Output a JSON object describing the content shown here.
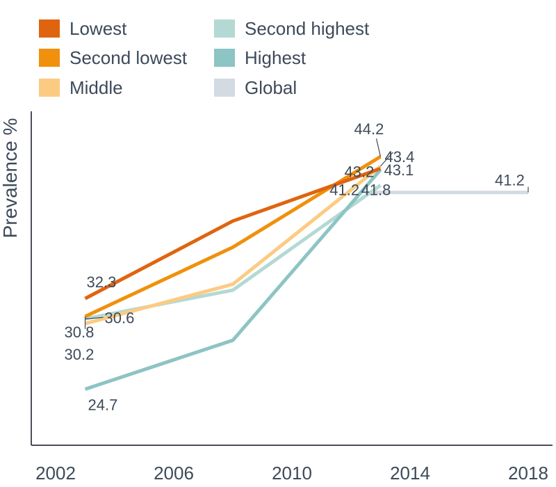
{
  "chart_data": {
    "type": "line",
    "title": "",
    "xlabel": "",
    "ylabel": "Prevalence %",
    "xlim": [
      2002,
      2018
    ],
    "ylim": [
      20,
      48
    ],
    "x_ticks": [
      "2002",
      "2006",
      "2010",
      "2014",
      "2018"
    ],
    "grid": false,
    "legend_position": "top-left",
    "series": [
      {
        "name": "Lowest",
        "color": "#e0640f",
        "x": [
          2003,
          2008,
          2013
        ],
        "y": [
          32.3,
          38.8,
          43.2
        ]
      },
      {
        "name": "Second lowest",
        "color": "#f0900c",
        "x": [
          2003,
          2008,
          2013
        ],
        "y": [
          30.8,
          36.6,
          44.2
        ]
      },
      {
        "name": "Middle",
        "color": "#fccb82",
        "x": [
          2003,
          2008,
          2013
        ],
        "y": [
          30.2,
          33.5,
          43.4
        ]
      },
      {
        "name": "Second highest",
        "color": "#b4d9d4",
        "x": [
          2003,
          2008,
          2013
        ],
        "y": [
          30.6,
          33.0,
          41.8
        ]
      },
      {
        "name": "Highest",
        "color": "#8dc4c4",
        "x": [
          2003,
          2008,
          2013
        ],
        "y": [
          24.7,
          28.8,
          43.1
        ]
      },
      {
        "name": "Global",
        "color": "#d3dae2",
        "x": [
          2012.5,
          2018
        ],
        "y": [
          41.2,
          41.2
        ]
      }
    ],
    "data_labels": [
      {
        "text": "32.3",
        "series": "Lowest",
        "x": 2003,
        "y": 32.3
      },
      {
        "text": "30.8",
        "series": "Second lowest",
        "x": 2003,
        "y": 30.8
      },
      {
        "text": "30.2",
        "series": "Middle",
        "x": 2003,
        "y": 30.2
      },
      {
        "text": "30.6",
        "series": "Second highest",
        "x": 2003,
        "y": 30.6
      },
      {
        "text": "24.7",
        "series": "Highest",
        "x": 2003,
        "y": 24.7
      },
      {
        "text": "44.2",
        "series": "Second lowest",
        "x": 2013,
        "y": 44.2
      },
      {
        "text": "43.4",
        "series": "Middle",
        "x": 2013,
        "y": 43.4
      },
      {
        "text": "43.2",
        "series": "Lowest",
        "x": 2013,
        "y": 43.2
      },
      {
        "text": "43.1",
        "series": "Highest",
        "x": 2013,
        "y": 43.1
      },
      {
        "text": "41.2",
        "series": "Global",
        "x": 2012.5,
        "y": 41.2
      },
      {
        "text": "41.8",
        "series": "Second highest",
        "x": 2013,
        "y": 41.8
      },
      {
        "text": "41.2",
        "series": "Global",
        "x": 2018,
        "y": 41.2
      }
    ]
  }
}
